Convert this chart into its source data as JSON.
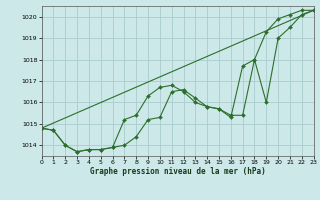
{
  "title": "Graphe pression niveau de la mer (hPa)",
  "background_color": "#cce8e8",
  "grid_color": "#aacccc",
  "line_color": "#2d6e2d",
  "xlim": [
    0,
    23
  ],
  "ylim": [
    1013.5,
    1020.5
  ],
  "yticks": [
    1014,
    1015,
    1016,
    1017,
    1018,
    1019,
    1020
  ],
  "xticks": [
    0,
    1,
    2,
    3,
    4,
    5,
    6,
    7,
    8,
    9,
    10,
    11,
    12,
    13,
    14,
    15,
    16,
    17,
    18,
    19,
    20,
    21,
    22,
    23
  ],
  "line1_x": [
    0,
    1,
    2,
    3,
    4,
    5,
    6,
    7,
    8,
    9,
    10,
    11,
    12,
    13,
    14,
    15,
    16,
    17,
    18,
    19,
    20,
    21,
    22,
    23
  ],
  "line1_y": [
    1014.8,
    1014.7,
    1014.0,
    1013.7,
    1013.8,
    1013.8,
    1013.9,
    1014.0,
    1014.4,
    1015.2,
    1015.3,
    1016.5,
    1016.6,
    1016.2,
    1015.8,
    1015.7,
    1015.4,
    1015.4,
    1018.0,
    1016.0,
    1019.0,
    1019.5,
    1020.1,
    1020.3
  ],
  "line2_x": [
    0,
    1,
    2,
    3,
    4,
    5,
    6,
    7,
    8,
    9,
    10,
    11,
    12,
    13,
    14,
    15,
    16,
    17,
    18,
    19,
    20,
    21,
    22,
    23
  ],
  "line2_y": [
    1014.8,
    1014.7,
    1014.0,
    1013.7,
    1013.8,
    1013.8,
    1013.9,
    1015.2,
    1015.4,
    1016.3,
    1016.7,
    1016.8,
    1016.5,
    1016.0,
    1015.8,
    1015.7,
    1015.3,
    1017.7,
    1018.0,
    1019.3,
    1019.9,
    1020.1,
    1020.3,
    1020.3
  ],
  "line3_x": [
    0,
    23
  ],
  "line3_y": [
    1014.8,
    1020.3
  ]
}
